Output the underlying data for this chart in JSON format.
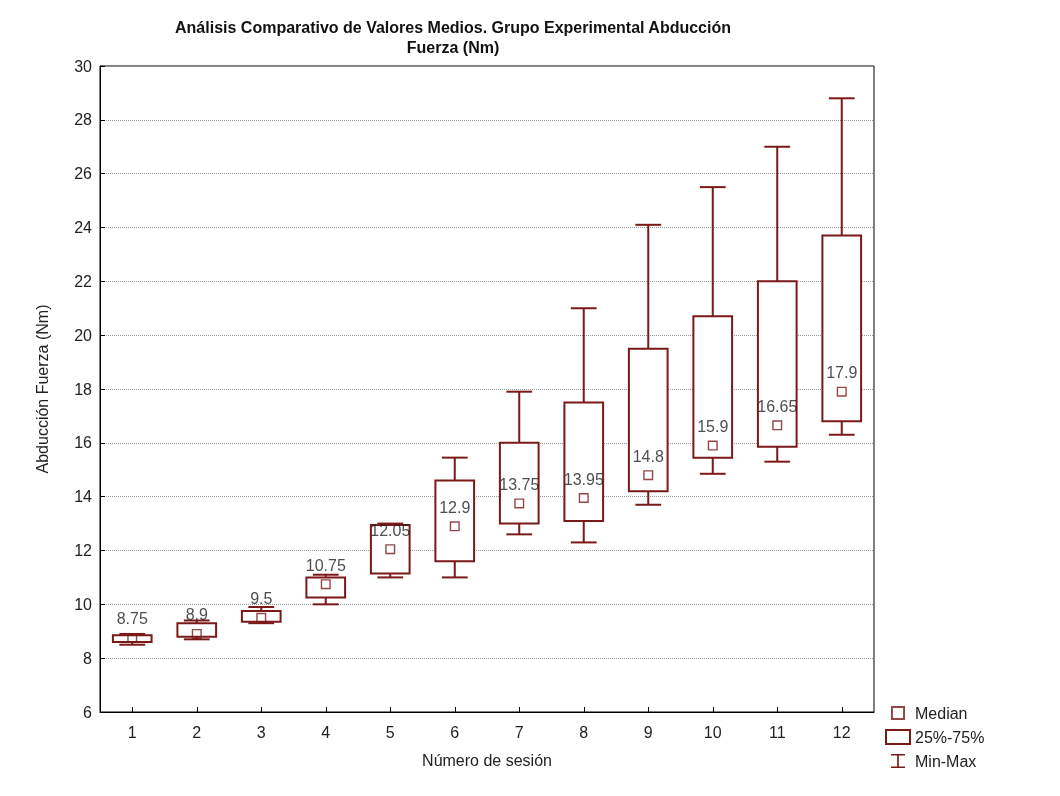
{
  "chart_data": {
    "type": "box",
    "title": "Análisis Comparativo de Valores Medios. Grupo Experimental Abducción\nFuerza (Nm)",
    "xlabel": "Número de sesión",
    "ylabel": "Abducción Fuerza (Nm)",
    "categories": [
      "1",
      "2",
      "3",
      "4",
      "5",
      "6",
      "7",
      "8",
      "9",
      "10",
      "11",
      "12"
    ],
    "series": [
      {
        "name": "Median",
        "type": "scatter",
        "color": "#7b1818",
        "marker": "square",
        "x": [
          "1",
          "2",
          "3",
          "4",
          "5",
          "6",
          "7",
          "8",
          "9",
          "10",
          "11",
          "12"
        ],
        "values": [
          8.75,
          8.9,
          9.5,
          10.75,
          12.05,
          12.9,
          13.75,
          13.95,
          14.8,
          15.9,
          16.65,
          17.9
        ]
      },
      {
        "name": "25%-75%",
        "type": "box",
        "color": "#7b1818",
        "boxes": [
          {
            "low": 8.5,
            "q1": 8.6,
            "q3": 8.85,
            "high": 8.9
          },
          {
            "low": 8.7,
            "q1": 8.8,
            "q3": 9.3,
            "high": 9.4
          },
          {
            "low": 9.3,
            "q1": 9.35,
            "q3": 9.75,
            "high": 9.9
          },
          {
            "low": 10.0,
            "q1": 10.25,
            "q3": 11.0,
            "high": 11.1
          },
          {
            "low": 11.0,
            "q1": 11.15,
            "q3": 12.95,
            "high": 13.0
          },
          {
            "low": 11.0,
            "q1": 11.6,
            "q3": 14.6,
            "high": 15.45
          },
          {
            "low": 12.6,
            "q1": 13.0,
            "q3": 16.0,
            "high": 17.9
          },
          {
            "low": 12.3,
            "q1": 13.1,
            "q3": 17.5,
            "high": 21.0
          },
          {
            "low": 13.7,
            "q1": 14.2,
            "q3": 19.5,
            "high": 24.1
          },
          {
            "low": 14.85,
            "q1": 15.45,
            "q3": 20.7,
            "high": 25.5
          },
          {
            "low": 15.3,
            "q1": 15.85,
            "q3": 22.0,
            "high": 27.0
          },
          {
            "low": 16.3,
            "q1": 16.8,
            "q3": 23.7,
            "high": 28.8
          }
        ]
      }
    ],
    "annotations": [
      "Min-Max"
    ],
    "ylim": [
      6,
      30
    ],
    "yticks": [
      6,
      8,
      10,
      12,
      14,
      16,
      18,
      20,
      22,
      24,
      26,
      28,
      30
    ],
    "grid": "y",
    "data_labels": true,
    "legend": "bottom right"
  }
}
